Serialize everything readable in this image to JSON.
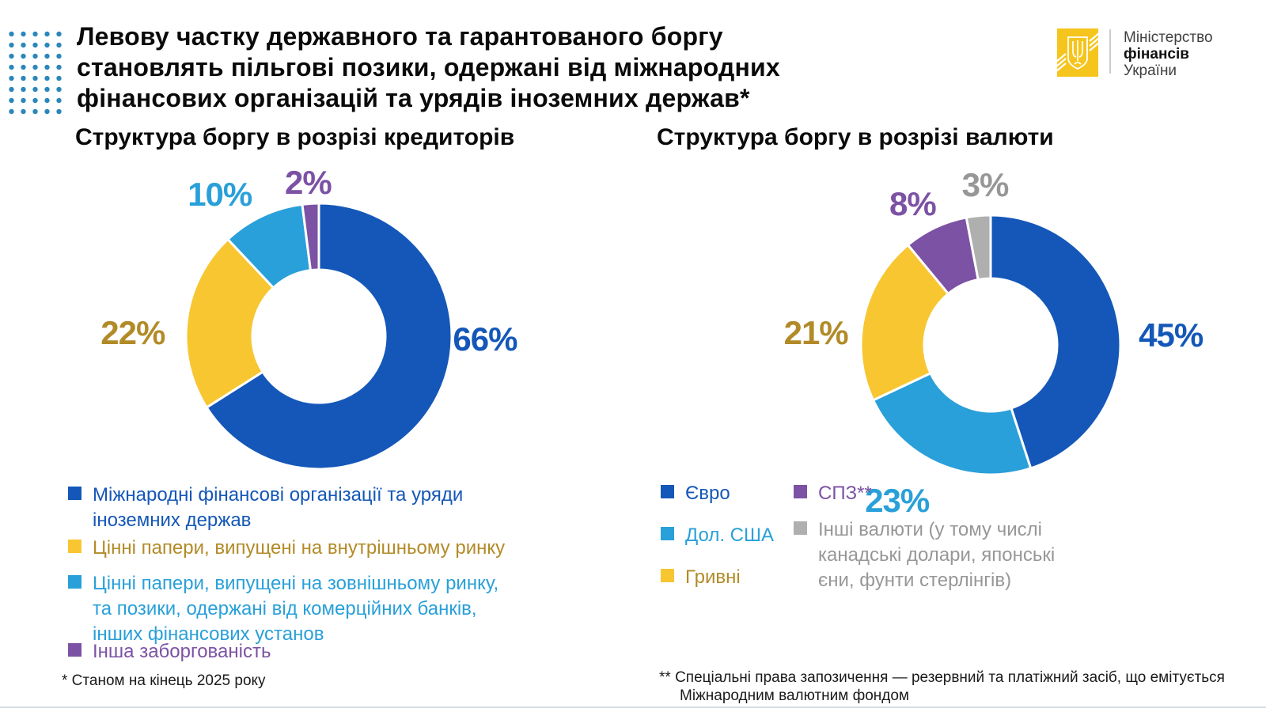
{
  "header": {
    "headline_lines": [
      "Левову частку державного та гарантованого боргу",
      "становлять пільгові позики, одержані від міжнародних",
      "фінансових організацій та урядів іноземних держав*"
    ],
    "logo": {
      "line1": "Міністерство",
      "line2": "фінансів",
      "line3": "України"
    }
  },
  "colors": {
    "blue": "#1457B8",
    "cyan": "#29A0D9",
    "yellow": "#F7C631",
    "purple": "#7C52A4",
    "gray": "#AFAFAF",
    "gold_label": "#B28B28",
    "gray_label": "#979797",
    "dots": "#2B87BB",
    "logo_yellow": "#F5C51E",
    "bottom_rule": "#D6DEE6"
  },
  "chart_data": [
    {
      "type": "pie",
      "variant": "donut",
      "units": "%",
      "title": "Структура боргу в розрізі кредиторів",
      "legend_position": "bottom-left",
      "start_angle_deg": 0,
      "direction": "clockwise",
      "segments": [
        {
          "label": "Міжнародні фінансові організації та уряди іноземних держав",
          "value": 66,
          "pct_label": "66%",
          "color": "#1457B8",
          "label_color": "#1457B8",
          "label_angle": 91,
          "label_r": 1.25
        },
        {
          "label": "Цінні папери, випущені на внутрішньому ринку",
          "value": 22,
          "pct_label": "22%",
          "color": "#F7C631",
          "label_color": "#B28B28",
          "label_angle": 271,
          "label_r": 1.4
        },
        {
          "label": "Цінні папери, випущені на зовнішньому ринку, та позики, одержані від комерційних банків, інших фінансових установ",
          "value": 10,
          "pct_label": "10%",
          "color": "#29A0D9",
          "label_color": "#29A0D9",
          "label_angle": 325,
          "label_r": 1.3
        },
        {
          "label": "Інша заборгованість",
          "value": 2,
          "pct_label": "2%",
          "color": "#7C52A4",
          "label_color": "#7C52A4",
          "label_angle": 356,
          "label_r": 1.16
        }
      ]
    },
    {
      "type": "pie",
      "variant": "donut",
      "units": "%",
      "title": "Структура боргу в розрізі валюти",
      "legend_position": "bottom-two-columns",
      "start_angle_deg": 0,
      "direction": "clockwise",
      "segments": [
        {
          "label": "Євро",
          "value": 45,
          "pct_label": "45%",
          "color": "#1457B8",
          "label_color": "#1457B8",
          "label_angle": 87,
          "label_r": 1.39
        },
        {
          "label": "Дол. США",
          "value": 23,
          "pct_label": "23%",
          "color": "#29A0D9",
          "label_color": "#29A0D9",
          "label_angle": 211,
          "label_r": 1.4
        },
        {
          "label": "Гривні",
          "value": 21,
          "pct_label": "21%",
          "color": "#F7C631",
          "label_color": "#B28B28",
          "label_angle": 274,
          "label_r": 1.35
        },
        {
          "label": "СПЗ**",
          "value": 8,
          "pct_label": "8%",
          "color": "#7C52A4",
          "label_color": "#7C52A4",
          "label_angle": 331,
          "label_r": 1.24
        },
        {
          "label": "Інші валюти (у тому числі канадські долари, японські єни, фунти стерлінгів)",
          "value": 3,
          "pct_label": "3%",
          "color": "#AFAFAF",
          "label_color": "#979797",
          "label_angle": 358,
          "label_r": 1.23
        }
      ]
    }
  ],
  "footnotes": {
    "left": "* Станом на кінець 2025 року",
    "right": "** Спеціальні права запозичення — резервний та платіжний засіб, що емітується Міжнародним валютним фондом"
  }
}
